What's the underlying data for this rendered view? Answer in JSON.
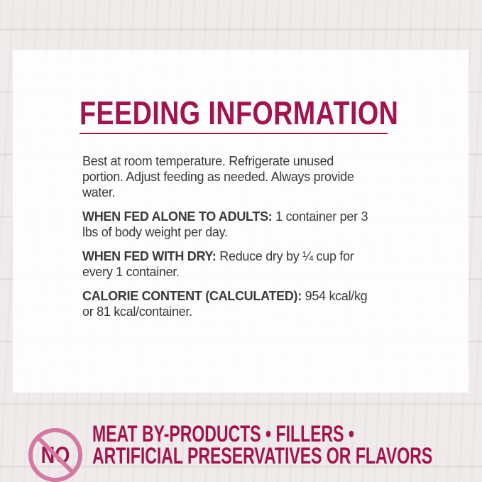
{
  "title": "FEEDING INFORMATION",
  "accent_color": "#a3134f",
  "intro": "Best at room temperature. Refrigerate unused portion. Adjust feeding as needed. Always provide water.",
  "sections": [
    {
      "label": "WHEN FED ALONE TO ADULTS:",
      "text": " 1 container per 3 lbs of body weight per day."
    },
    {
      "label": "WHEN FED WITH DRY:",
      "text": " Reduce dry by ¼ cup for every 1 container."
    },
    {
      "label": "CALORIE CONTENT (CALCULATED):",
      "text": " 954 kcal/kg or 81 kcal/container."
    }
  ],
  "no_badge": {
    "icon": "prohibited-no-icon",
    "text": "NO"
  },
  "claims": {
    "line1": "MEAT BY-PRODUCTS • FILLERS •",
    "line2": "ARTIFICIAL PRESERVATIVES OR FLAVORS"
  }
}
